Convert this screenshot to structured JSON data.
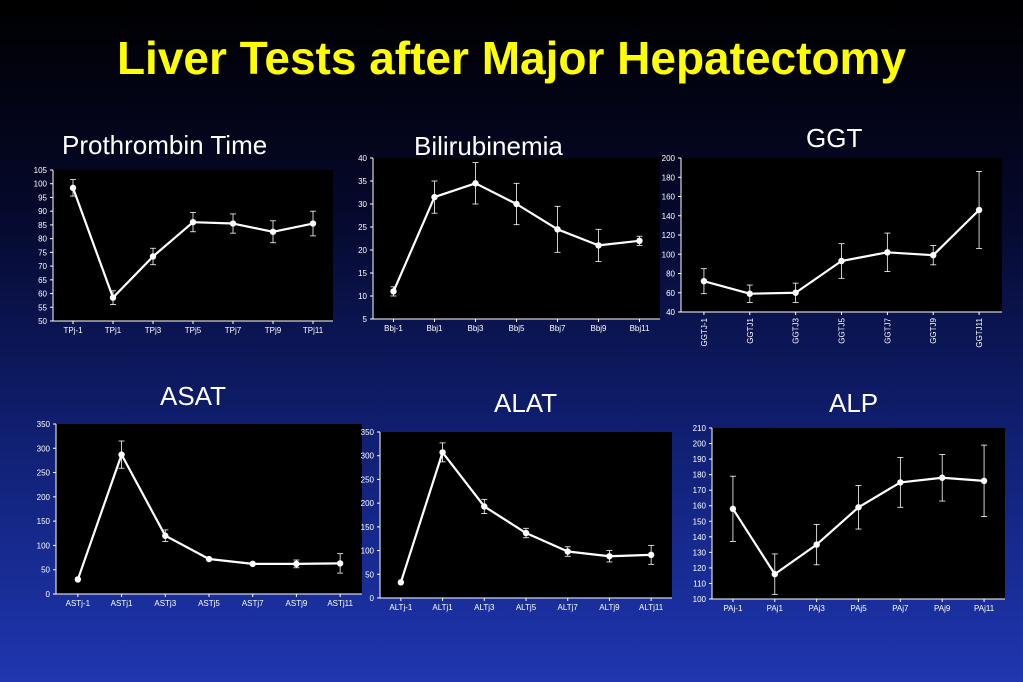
{
  "slide_title": "Liver Tests after Major Hepatectomy",
  "chart_data": [
    {
      "type": "line",
      "title": "Prothrombin Time",
      "categories": [
        "TPj-1",
        "TPj1",
        "TPj3",
        "TPj5",
        "TPj7",
        "TPj9",
        "TPj11"
      ],
      "series": [
        {
          "values": [
            98.5,
            58.5,
            73.5,
            86,
            85.5,
            82.5,
            85.5
          ],
          "errors": [
            3,
            2.5,
            3,
            3.5,
            3.5,
            4,
            4.5
          ]
        }
      ],
      "ylim": [
        50,
        105
      ],
      "yticks": [
        50,
        55,
        60,
        65,
        70,
        75,
        80,
        85,
        90,
        95,
        100,
        105
      ],
      "rotate_x_labels": false
    },
    {
      "type": "line",
      "title": "Bilirubinemia",
      "categories": [
        "Bbj-1",
        "Bbj1",
        "Bbj3",
        "Bbj5",
        "Bbj7",
        "Bbj9",
        "Bbj11"
      ],
      "series": [
        {
          "values": [
            11,
            31.5,
            34.5,
            30,
            24.5,
            21,
            22
          ],
          "errors": [
            1,
            3.5,
            4.5,
            4.5,
            5,
            3.5,
            1
          ]
        }
      ],
      "ylim": [
        5,
        40
      ],
      "yticks": [
        5,
        10,
        15,
        20,
        25,
        30,
        35,
        40
      ],
      "rotate_x_labels": false
    },
    {
      "type": "line",
      "title": "GGT",
      "categories": [
        "GGTJ-1",
        "GGTJ1",
        "GGTJ3",
        "GGTJ5",
        "GGTJ7",
        "GGTJ9",
        "GGTJ11"
      ],
      "series": [
        {
          "values": [
            72,
            59,
            60,
            93,
            102,
            99,
            146
          ],
          "errors": [
            13,
            9,
            10,
            18,
            20,
            10,
            40
          ]
        }
      ],
      "ylim": [
        40,
        200
      ],
      "yticks": [
        40,
        60,
        80,
        100,
        120,
        140,
        160,
        180,
        200
      ],
      "rotate_x_labels": true
    },
    {
      "type": "line",
      "title": "ASAT",
      "categories": [
        "ASTj-1",
        "ASTj1",
        "ASTj3",
        "ASTj5",
        "ASTj7",
        "ASTj9",
        "ASTj11"
      ],
      "series": [
        {
          "values": [
            30,
            287,
            120,
            72,
            62,
            62,
            63
          ],
          "errors": [
            0,
            28,
            12,
            0,
            0,
            8,
            20
          ]
        }
      ],
      "ylim": [
        0,
        350
      ],
      "yticks": [
        0,
        50,
        100,
        150,
        200,
        250,
        300,
        350
      ],
      "rotate_x_labels": false
    },
    {
      "type": "line",
      "title": "ALAT",
      "categories": [
        "ALTj-1",
        "ALTj1",
        "ALTj3",
        "ALTj5",
        "ALTj7",
        "ALTj9",
        "ALTj11"
      ],
      "series": [
        {
          "values": [
            33,
            307,
            193,
            137,
            98,
            88,
            91
          ],
          "errors": [
            0,
            20,
            15,
            10,
            10,
            12,
            20
          ]
        }
      ],
      "ylim": [
        0,
        350
      ],
      "yticks": [
        0,
        50,
        100,
        150,
        200,
        250,
        300,
        350
      ],
      "rotate_x_labels": false
    },
    {
      "type": "line",
      "title": "ALP",
      "categories": [
        "PAj-1",
        "PAj1",
        "PAj3",
        "PAj5",
        "PAj7",
        "PAj9",
        "PAj11"
      ],
      "series": [
        {
          "values": [
            158,
            116,
            135,
            159,
            175,
            178,
            176
          ],
          "errors": [
            21,
            13,
            13,
            14,
            16,
            15,
            23
          ]
        }
      ],
      "ylim": [
        100,
        210
      ],
      "yticks": [
        100,
        110,
        120,
        130,
        140,
        150,
        160,
        170,
        180,
        190,
        200,
        210
      ],
      "rotate_x_labels": false
    }
  ]
}
